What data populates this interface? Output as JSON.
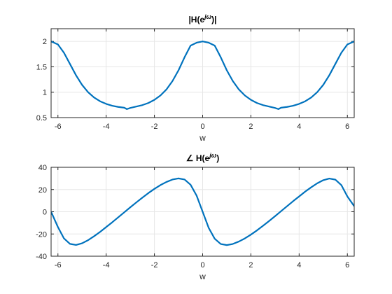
{
  "chart_data": [
    {
      "type": "line",
      "title_base": "|H(e",
      "title_sup": "jω",
      "title_tail": ")|",
      "xlabel": "w",
      "ylabel": "",
      "xlim": [
        -6.2832,
        6.2832
      ],
      "ylim": [
        0.5,
        2.25
      ],
      "xticks": [
        -6,
        -4,
        -2,
        0,
        2,
        4,
        6
      ],
      "xtick_labels": [
        "-6",
        "-4",
        "-2",
        "0",
        "2",
        "4",
        "6"
      ],
      "yticks": [
        0.5,
        1,
        1.5,
        2
      ],
      "ytick_labels": [
        "0.5",
        "1",
        "1.5",
        "2"
      ],
      "grid": true,
      "series": [
        {
          "color": "#0072BD",
          "x": [
            -6.2832,
            -6.0,
            -5.75,
            -5.5,
            -5.25,
            -5.0,
            -4.75,
            -4.5,
            -4.25,
            -4.0,
            -3.75,
            -3.5,
            -3.25,
            -3.1416,
            -3.0,
            -2.75,
            -2.5,
            -2.25,
            -2.0,
            -1.75,
            -1.5,
            -1.25,
            -1.0,
            -0.75,
            -0.5,
            -0.25,
            0.0,
            0.25,
            0.5,
            0.75,
            1.0,
            1.25,
            1.5,
            1.75,
            2.0,
            2.25,
            2.5,
            2.75,
            3.0,
            3.1416,
            3.25,
            3.5,
            3.75,
            4.0,
            4.25,
            4.5,
            4.75,
            5.0,
            5.25,
            5.5,
            5.75,
            6.0,
            6.2832
          ],
          "y": [
            2.0,
            1.94,
            1.776,
            1.555,
            1.333,
            1.144,
            1.0,
            0.895,
            0.821,
            0.77,
            0.734,
            0.71,
            0.695,
            0.667,
            0.69,
            0.718,
            0.746,
            0.788,
            0.85,
            0.936,
            1.055,
            1.22,
            1.432,
            1.688,
            1.918,
            1.975,
            2.0,
            1.975,
            1.918,
            1.688,
            1.432,
            1.22,
            1.055,
            0.936,
            0.85,
            0.788,
            0.746,
            0.718,
            0.69,
            0.667,
            0.695,
            0.71,
            0.734,
            0.77,
            0.821,
            0.895,
            1.0,
            1.144,
            1.333,
            1.555,
            1.776,
            1.94,
            2.0
          ]
        }
      ]
    },
    {
      "type": "line",
      "title_base": "∠ H(e",
      "title_sup": "jω",
      "title_tail": ")",
      "xlabel": "w",
      "ylabel": "",
      "xlim": [
        -6.2832,
        6.2832
      ],
      "ylim": [
        -40,
        40
      ],
      "xticks": [
        -6,
        -4,
        -2,
        0,
        2,
        4,
        6
      ],
      "xtick_labels": [
        "-6",
        "-4",
        "-2",
        "0",
        "2",
        "4",
        "6"
      ],
      "yticks": [
        -40,
        -20,
        0,
        20,
        40
      ],
      "ytick_labels": [
        "-40",
        "-20",
        "0",
        "20",
        "40"
      ],
      "grid": true,
      "series": [
        {
          "color": "#0072BD",
          "x": [
            -6.2832,
            -6.0,
            -5.75,
            -5.5,
            -5.25,
            -5.0,
            -4.75,
            -4.5,
            -4.25,
            -4.0,
            -3.75,
            -3.5,
            -3.25,
            -3.0,
            -2.75,
            -2.5,
            -2.25,
            -2.0,
            -1.75,
            -1.5,
            -1.25,
            -1.0,
            -0.75,
            -0.5,
            -0.25,
            0.0,
            0.25,
            0.5,
            0.75,
            1.0,
            1.25,
            1.5,
            1.75,
            2.0,
            2.25,
            2.5,
            2.75,
            3.0,
            3.25,
            3.5,
            3.75,
            4.0,
            4.25,
            4.5,
            4.75,
            5.0,
            5.25,
            5.5,
            5.75,
            6.0,
            6.2832
          ],
          "y": [
            0,
            -13.8,
            -24.0,
            -28.9,
            -29.9,
            -28.4,
            -25.6,
            -22.0,
            -18.1,
            -13.8,
            -9.5,
            -5.0,
            -0.5,
            4.0,
            8.4,
            12.7,
            16.8,
            20.6,
            24.0,
            26.8,
            29.0,
            30.0,
            29.0,
            24.3,
            14.5,
            0,
            -14.5,
            -24.3,
            -29.0,
            -30.0,
            -29.0,
            -26.8,
            -24.0,
            -20.6,
            -16.8,
            -12.7,
            -8.4,
            -4.0,
            0.5,
            5.0,
            9.5,
            13.8,
            18.1,
            22.0,
            25.6,
            28.4,
            29.9,
            28.9,
            24.0,
            13.8,
            5.0
          ]
        }
      ]
    }
  ]
}
